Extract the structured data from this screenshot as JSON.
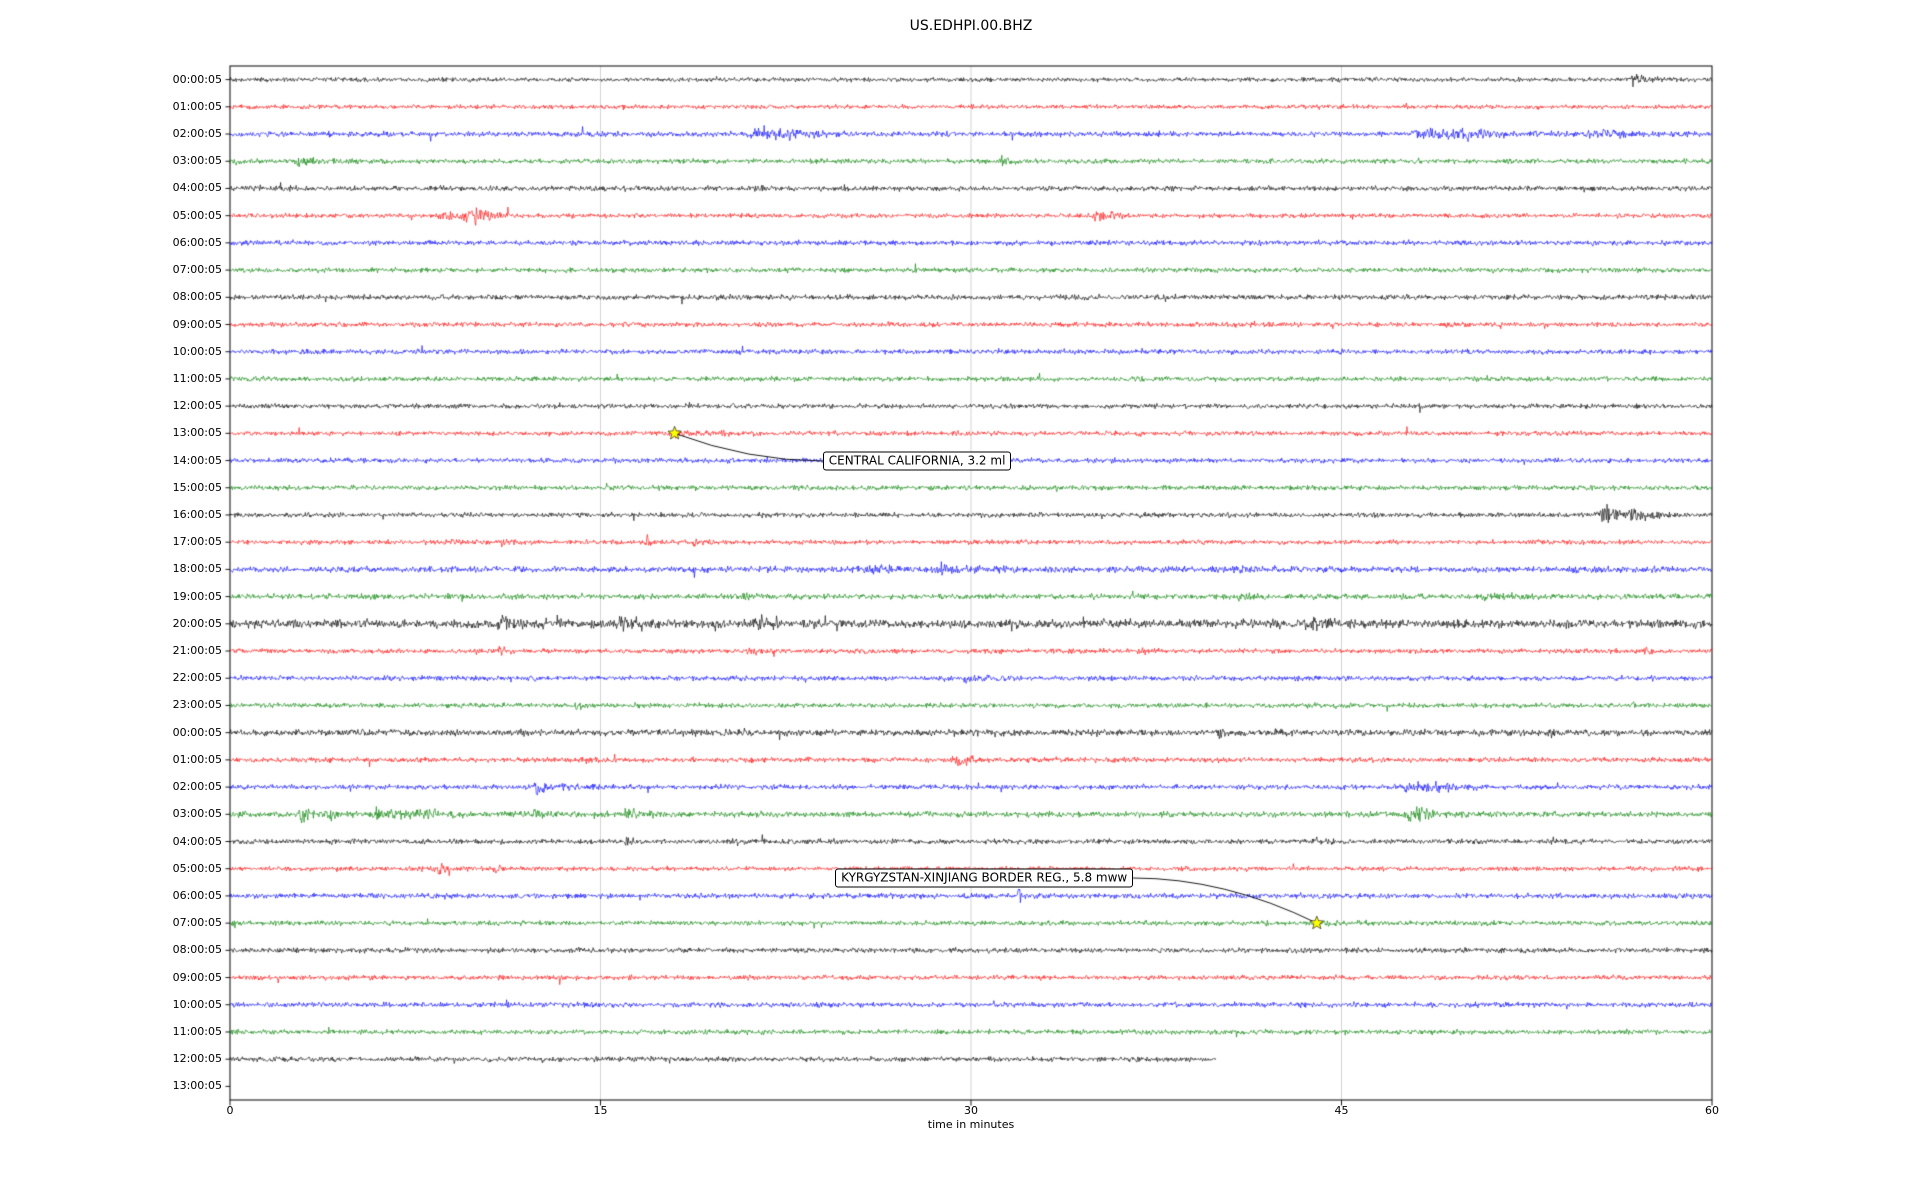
{
  "title": "US.EDHPI.00.BHZ",
  "chart_data": {
    "type": "line",
    "subtype": "seismogram-dayplot",
    "title": "US.EDHPI.00.BHZ",
    "xlabel": "time in minutes",
    "x_range": [
      0,
      60
    ],
    "x_ticks": [
      "0",
      "15",
      "30",
      "45",
      "60"
    ],
    "grid": "vertical-only",
    "trace_color_cycle": [
      "#000000",
      "#ff0000",
      "#0000ff",
      "#008000"
    ],
    "grid_color": "#c8c8c8",
    "star_color": "#ffff00",
    "rows": [
      {
        "label": "00:00:05",
        "color": "#000000",
        "amp": 0.9,
        "bursts": [
          [
            56.8,
            0.5,
            3.0
          ]
        ]
      },
      {
        "label": "01:00:05",
        "color": "#ff0000",
        "amp": 0.9,
        "bursts": []
      },
      {
        "label": "02:00:05",
        "color": "#0000ff",
        "amp": 1.1,
        "bursts": [
          [
            21.3,
            1.2,
            2.2
          ],
          [
            22.5,
            0.8,
            1.6
          ],
          [
            48.3,
            1.6,
            2.0
          ],
          [
            50.0,
            0.8,
            1.6
          ],
          [
            55.2,
            0.9,
            1.6
          ]
        ]
      },
      {
        "label": "03:00:05",
        "color": "#008000",
        "amp": 1.0,
        "bursts": [
          [
            2.8,
            0.7,
            1.6
          ],
          [
            31.2,
            0.35,
            2.2
          ]
        ]
      },
      {
        "label": "04:00:05",
        "color": "#000000",
        "amp": 1.05,
        "bursts": [
          [
            2.0,
            0.25,
            1.6
          ],
          [
            21.2,
            0.5,
            1.0
          ],
          [
            24.8,
            0.3,
            1.0
          ]
        ]
      },
      {
        "label": "05:00:05",
        "color": "#ff0000",
        "amp": 0.95,
        "bursts": [
          [
            8.6,
            0.5,
            2.0
          ],
          [
            9.7,
            0.8,
            3.2
          ],
          [
            35.1,
            0.6,
            2.4
          ]
        ]
      },
      {
        "label": "06:00:05",
        "color": "#0000ff",
        "amp": 1.05,
        "bursts": []
      },
      {
        "label": "07:00:05",
        "color": "#008000",
        "amp": 1.0,
        "bursts": []
      },
      {
        "label": "08:00:05",
        "color": "#000000",
        "amp": 1.1,
        "bursts": []
      },
      {
        "label": "09:00:05",
        "color": "#ff0000",
        "amp": 1.0,
        "bursts": []
      },
      {
        "label": "10:00:05",
        "color": "#0000ff",
        "amp": 1.0,
        "bursts": []
      },
      {
        "label": "11:00:05",
        "color": "#008000",
        "amp": 1.0,
        "bursts": []
      },
      {
        "label": "12:00:05",
        "color": "#000000",
        "amp": 1.0,
        "bursts": []
      },
      {
        "label": "13:00:05",
        "color": "#ff0000",
        "amp": 0.95,
        "bursts": [
          [
            18.2,
            0.4,
            1.4
          ],
          [
            19.9,
            0.5,
            1.2
          ]
        ]
      },
      {
        "label": "14:00:05",
        "color": "#0000ff",
        "amp": 1.0,
        "bursts": []
      },
      {
        "label": "15:00:05",
        "color": "#008000",
        "amp": 1.0,
        "bursts": []
      },
      {
        "label": "16:00:05",
        "color": "#000000",
        "amp": 1.0,
        "bursts": [
          [
            55.6,
            0.9,
            4.0
          ],
          [
            56.8,
            0.6,
            2.2
          ]
        ]
      },
      {
        "label": "17:00:05",
        "color": "#ff0000",
        "amp": 0.95,
        "bursts": [
          [
            9.0,
            0.3,
            1.2
          ],
          [
            11.0,
            0.35,
            1.6
          ],
          [
            16.9,
            0.5,
            1.6
          ],
          [
            18.8,
            0.4,
            1.4
          ]
        ]
      },
      {
        "label": "18:00:05",
        "color": "#0000ff",
        "amp": 1.25,
        "bursts": [
          [
            25.8,
            1.6,
            1.2
          ],
          [
            28.8,
            1.2,
            1.1
          ],
          [
            39.8,
            0.8,
            0.9
          ],
          [
            54.3,
            0.5,
            0.9
          ]
        ]
      },
      {
        "label": "19:00:05",
        "color": "#008000",
        "amp": 1.15,
        "bursts": [
          [
            20.4,
            0.9,
            1.0
          ],
          [
            40.8,
            1.2,
            0.9
          ],
          [
            50.8,
            0.8,
            0.9
          ]
        ]
      },
      {
        "label": "20:00:05",
        "color": "#000000",
        "amp": 1.8,
        "bursts": [
          [
            10.9,
            0.8,
            1.2
          ],
          [
            15.8,
            1.2,
            1.2
          ],
          [
            21.4,
            0.9,
            1.2
          ],
          [
            43.8,
            0.8,
            0.9
          ]
        ]
      },
      {
        "label": "21:00:05",
        "color": "#ff0000",
        "amp": 1.0,
        "bursts": [
          [
            10.9,
            0.2,
            2.4
          ],
          [
            21.0,
            0.7,
            1.5
          ],
          [
            36.8,
            0.4,
            1.0
          ],
          [
            57.2,
            0.4,
            1.0
          ]
        ]
      },
      {
        "label": "22:00:05",
        "color": "#0000ff",
        "amp": 1.05,
        "bursts": [
          [
            29.8,
            0.5,
            1.2
          ]
        ]
      },
      {
        "label": "23:00:05",
        "color": "#008000",
        "amp": 1.0,
        "bursts": [
          [
            14.0,
            0.3,
            1.5
          ]
        ]
      },
      {
        "label": "00:00:05",
        "color": "#000000",
        "amp": 1.35,
        "bursts": [
          [
            40.0,
            0.3,
            1.2
          ],
          [
            53.3,
            0.3,
            1.1
          ]
        ]
      },
      {
        "label": "01:00:05",
        "color": "#ff0000",
        "amp": 1.05,
        "bursts": [
          [
            14.4,
            0.4,
            1.2
          ],
          [
            29.3,
            0.7,
            2.4
          ]
        ]
      },
      {
        "label": "02:00:05",
        "color": "#0000ff",
        "amp": 1.05,
        "bursts": [
          [
            12.4,
            0.8,
            2.0
          ],
          [
            47.7,
            0.8,
            2.4
          ],
          [
            48.8,
            0.5,
            1.6
          ]
        ]
      },
      {
        "label": "03:00:05",
        "color": "#008000",
        "amp": 1.2,
        "bursts": [
          [
            2.9,
            0.5,
            2.0
          ],
          [
            4.0,
            0.5,
            1.8
          ],
          [
            6.0,
            0.9,
            1.6
          ],
          [
            7.6,
            0.7,
            1.6
          ],
          [
            11.9,
            0.8,
            1.5
          ],
          [
            16.0,
            0.4,
            2.6
          ],
          [
            47.8,
            0.7,
            2.8
          ]
        ]
      },
      {
        "label": "04:00:05",
        "color": "#000000",
        "amp": 1.05,
        "bursts": [
          [
            16.0,
            0.3,
            2.0
          ],
          [
            20.4,
            0.3,
            1.3
          ],
          [
            44.0,
            0.3,
            1.0
          ]
        ]
      },
      {
        "label": "05:00:05",
        "color": "#ff0000",
        "amp": 0.95,
        "bursts": [
          [
            8.4,
            0.45,
            2.4
          ],
          [
            10.7,
            0.3,
            1.5
          ]
        ]
      },
      {
        "label": "06:00:05",
        "color": "#0000ff",
        "amp": 1.1,
        "bursts": [
          [
            31.9,
            0.18,
            4.5
          ]
        ]
      },
      {
        "label": "07:00:05",
        "color": "#008000",
        "amp": 1.0,
        "bursts": [
          [
            44.2,
            0.5,
            1.0
          ]
        ]
      },
      {
        "label": "08:00:05",
        "color": "#000000",
        "amp": 1.05,
        "bursts": []
      },
      {
        "label": "09:00:05",
        "color": "#ff0000",
        "amp": 1.0,
        "bursts": []
      },
      {
        "label": "10:00:05",
        "color": "#0000ff",
        "amp": 1.05,
        "bursts": []
      },
      {
        "label": "11:00:05",
        "color": "#008000",
        "amp": 1.0,
        "bursts": []
      },
      {
        "label": "12:00:05",
        "color": "#000000",
        "amp": 1.05,
        "end": 39.9,
        "bursts": []
      },
      {
        "label": "13:00:05",
        "color": "#000000",
        "amp": 1.0,
        "end": 0,
        "bursts": []
      }
    ],
    "events": [
      {
        "label": "CENTRAL CALIFORNIA, 3.2 ml",
        "star_row": 13,
        "star_x": 18.0,
        "box_row": 14.0,
        "box_x": 24.0
      },
      {
        "label": "KYRGYZSTAN-XINJIANG BORDER REG., 5.8 mww",
        "star_row": 31,
        "star_x": 44.0,
        "box_row": 29.35,
        "box_x": 24.5
      }
    ]
  }
}
